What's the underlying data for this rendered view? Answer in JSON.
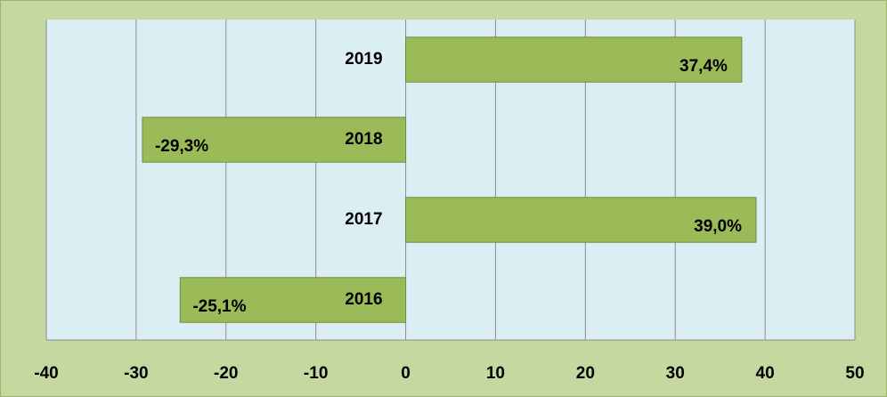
{
  "chart_data": {
    "type": "bar",
    "orientation": "horizontal",
    "categories": [
      "2016",
      "2017",
      "2018",
      "2019"
    ],
    "values": [
      -25.1,
      39.0,
      -29.3,
      37.4
    ],
    "value_labels": [
      "-25,1%",
      "39,0%",
      "-29,3%",
      "37,4%"
    ],
    "color": "#9bbb59",
    "xlim": [
      -40,
      50
    ],
    "xticks": [
      -40,
      -30,
      -20,
      -10,
      0,
      10,
      20,
      30,
      40,
      50
    ],
    "grid": true
  }
}
